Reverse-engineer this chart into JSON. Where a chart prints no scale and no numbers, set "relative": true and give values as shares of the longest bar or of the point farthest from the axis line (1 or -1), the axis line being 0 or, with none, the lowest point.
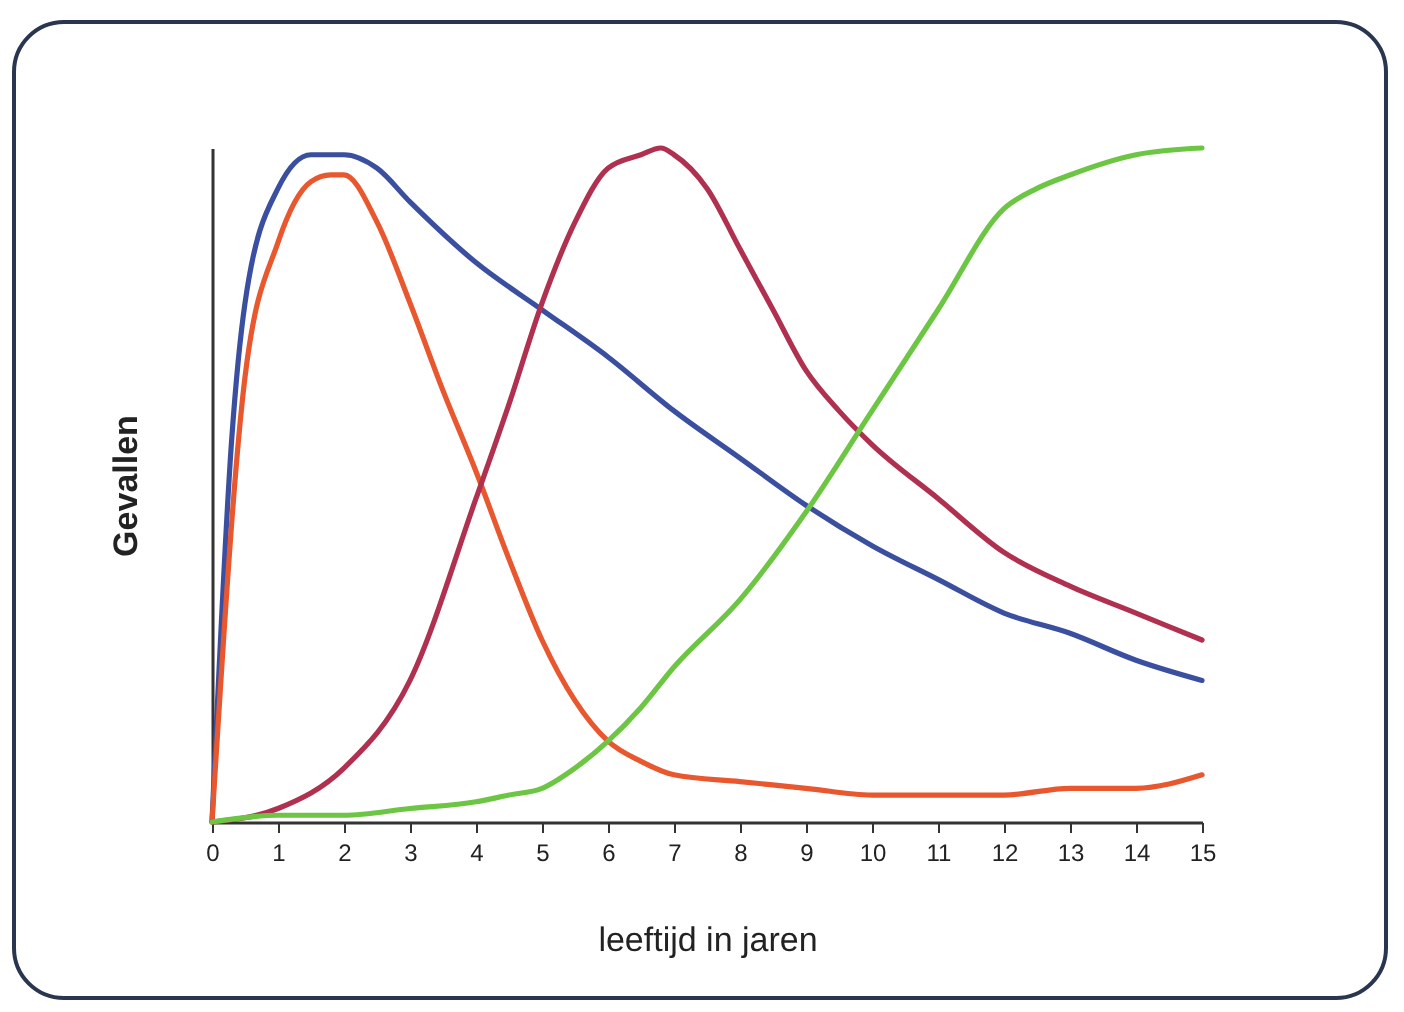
{
  "chart_data": {
    "type": "line",
    "xlabel": "leeftijd in jaren",
    "ylabel": "Gevallen",
    "relative": true,
    "xlim": [
      0,
      15
    ],
    "xticks": [
      0,
      1,
      2,
      3,
      4,
      5,
      6,
      7,
      8,
      9,
      10,
      11,
      12,
      13,
      14,
      15
    ],
    "tick_labels": "x",
    "series": [
      {
        "color": "#3b4fa0",
        "x": [
          0,
          0.3,
          0.5,
          1,
          1.5,
          2,
          2.5,
          3,
          4,
          5,
          6,
          7,
          8,
          9,
          10,
          11,
          12,
          13,
          14,
          15
        ],
        "values": [
          0,
          0.57,
          0.77,
          0.94,
          0.99,
          0.99,
          0.97,
          0.92,
          0.83,
          0.76,
          0.69,
          0.61,
          0.54,
          0.47,
          0.41,
          0.36,
          0.31,
          0.28,
          0.24,
          0.21
        ]
      },
      {
        "color": "#e8572e",
        "x": [
          0,
          0.5,
          1,
          1.5,
          1.8,
          2,
          2.5,
          3,
          3.5,
          4,
          4.5,
          5,
          5.5,
          6,
          6.5,
          7,
          8,
          9,
          10,
          11,
          12,
          13,
          14,
          15
        ],
        "values": [
          0,
          0.66,
          0.86,
          0.95,
          0.96,
          0.96,
          0.89,
          0.77,
          0.64,
          0.52,
          0.39,
          0.27,
          0.18,
          0.12,
          0.09,
          0.07,
          0.06,
          0.05,
          0.04,
          0.04,
          0.04,
          0.05,
          0.05,
          0.07
        ]
      },
      {
        "color": "#b0304f",
        "x": [
          0,
          1,
          2,
          3,
          4,
          4.5,
          5,
          5.5,
          6,
          6.5,
          6.8,
          7,
          7.5,
          8,
          8.5,
          9,
          9.5,
          10,
          11,
          12,
          13,
          14,
          15
        ],
        "values": [
          0,
          0.02,
          0.08,
          0.21,
          0.48,
          0.62,
          0.77,
          0.89,
          0.97,
          0.99,
          1,
          0.99,
          0.94,
          0.85,
          0.76,
          0.67,
          0.61,
          0.56,
          0.48,
          0.4,
          0.35,
          0.31,
          0.27
        ]
      },
      {
        "color": "#6cc644",
        "x": [
          0,
          1,
          2,
          3,
          4,
          4.5,
          5,
          5.5,
          6,
          6.5,
          7,
          8,
          9,
          10,
          11,
          12,
          12.5,
          13,
          14,
          15
        ],
        "values": [
          0,
          0.01,
          0.01,
          0.02,
          0.03,
          0.04,
          0.05,
          0.08,
          0.12,
          0.17,
          0.23,
          0.33,
          0.46,
          0.61,
          0.76,
          0.91,
          0.94,
          0.96,
          0.99,
          1
        ]
      }
    ]
  }
}
